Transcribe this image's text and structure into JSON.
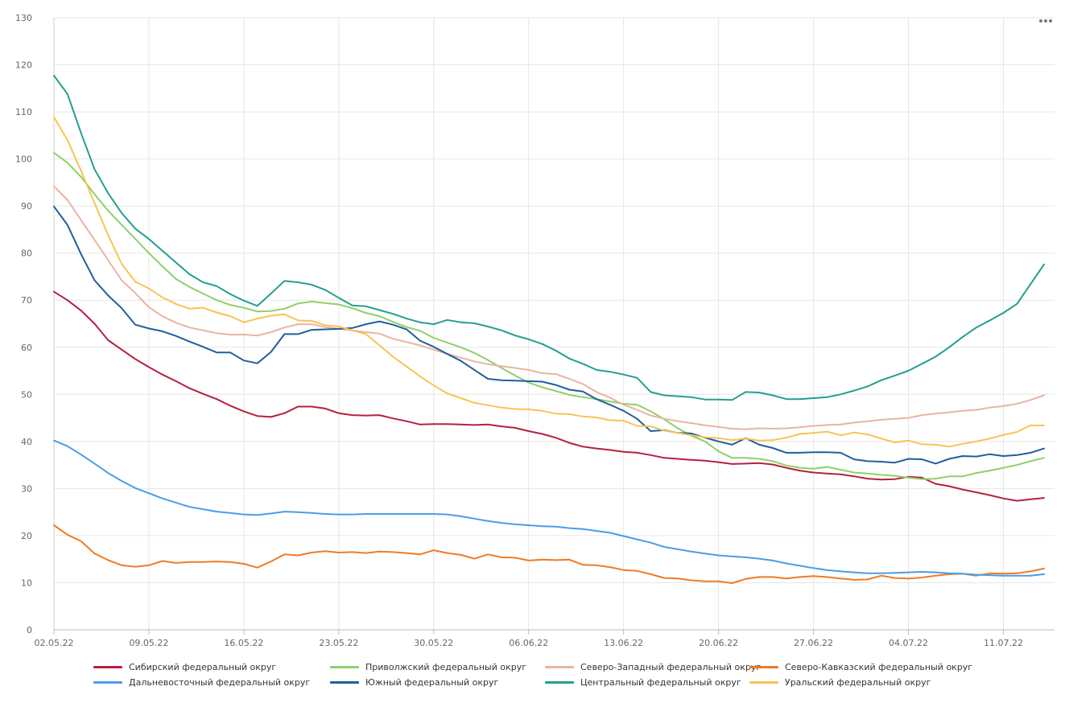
{
  "chart_data": {
    "type": "line",
    "title": "",
    "xlabel": "",
    "ylabel": "",
    "ylim": [
      0,
      130
    ],
    "yticks": [
      0,
      10,
      20,
      30,
      40,
      50,
      60,
      70,
      80,
      90,
      100,
      110,
      120,
      130
    ],
    "x_ticks": [
      "02.05.22",
      "09.05.22",
      "16.05.22",
      "23.05.22",
      "30.05.22",
      "06.06.22",
      "13.06.22",
      "20.06.22",
      "27.06.22",
      "04.07.22",
      "11.07.22"
    ],
    "x_start": "02.05.22",
    "x_end": "14.07.22",
    "grid": true,
    "legend_position": "bottom",
    "series": [
      {
        "name": "Сибирский федеральный округ",
        "color": "#b5203f",
        "values": [
          71.8,
          70.0,
          67.8,
          65.0,
          61.5,
          59.5,
          57.5,
          55.8,
          54.2,
          52.8,
          51.3,
          50.1,
          49.0,
          47.6,
          46.4,
          45.4,
          45.2,
          46.0,
          47.4,
          47.4,
          47.0,
          46.0,
          45.6,
          45.5,
          45.6,
          44.9,
          44.3,
          43.6,
          43.7,
          43.7,
          43.6,
          43.5,
          43.6,
          43.2,
          42.9,
          42.2,
          41.6,
          40.8,
          39.7,
          38.9,
          38.5,
          38.2,
          37.8,
          37.6,
          37.1,
          36.5,
          36.3,
          36.1,
          35.9,
          35.6,
          35.2,
          35.3,
          35.4,
          35.1,
          34.4,
          33.8,
          33.4,
          33.2,
          33.0,
          32.6,
          32.1,
          31.9,
          32.0,
          32.5,
          32.3,
          31.0,
          30.5,
          29.8,
          29.2,
          28.6,
          27.9,
          27.4,
          27.7,
          28.0
        ]
      },
      {
        "name": "Приволжский федеральный округ",
        "color": "#8fd068",
        "values": [
          101.3,
          99.2,
          96.2,
          92.5,
          89.0,
          86.0,
          83.0,
          80.0,
          77.2,
          74.5,
          72.8,
          71.4,
          70.0,
          69.0,
          68.4,
          67.6,
          67.7,
          68.2,
          69.3,
          69.7,
          69.4,
          69.1,
          68.3,
          67.3,
          66.6,
          65.4,
          64.3,
          63.5,
          62.0,
          61.0,
          60.0,
          58.8,
          57.3,
          55.6,
          54.0,
          52.5,
          51.5,
          50.7,
          49.9,
          49.4,
          49.0,
          48.5,
          48.0,
          47.8,
          46.4,
          44.7,
          42.8,
          41.2,
          40.0,
          37.9,
          36.5,
          36.5,
          36.3,
          35.8,
          34.9,
          34.4,
          34.2,
          34.6,
          34.0,
          33.4,
          33.2,
          32.9,
          32.7,
          32.3,
          32.0,
          32.1,
          32.6,
          32.6,
          33.3,
          33.8,
          34.4,
          35.0,
          35.8,
          36.5
        ]
      },
      {
        "name": "Северо-Западный федеральный округ",
        "color": "#e8b5a3",
        "values": [
          94.2,
          91.3,
          87.0,
          82.8,
          78.5,
          74.2,
          71.5,
          68.5,
          66.6,
          65.2,
          64.2,
          63.6,
          63.0,
          62.7,
          62.7,
          62.5,
          63.2,
          64.2,
          64.9,
          64.9,
          64.3,
          63.9,
          63.6,
          63.2,
          62.9,
          61.8,
          61.1,
          60.4,
          59.5,
          58.6,
          57.8,
          57.0,
          56.4,
          56.0,
          55.6,
          55.2,
          54.5,
          54.3,
          53.3,
          52.2,
          50.5,
          49.3,
          47.8,
          46.7,
          45.5,
          44.8,
          44.3,
          43.9,
          43.4,
          43.1,
          42.7,
          42.6,
          42.8,
          42.7,
          42.8,
          43.0,
          43.3,
          43.5,
          43.6,
          44.0,
          44.3,
          44.6,
          44.8,
          45.0,
          45.6,
          45.9,
          46.2,
          46.5,
          46.7,
          47.2,
          47.5,
          48.0,
          48.8,
          49.8
        ]
      },
      {
        "name": "Северо-Кавказский федеральный округ",
        "color": "#f07b23",
        "values": [
          22.2,
          20.2,
          18.8,
          16.2,
          14.8,
          13.7,
          13.4,
          13.7,
          14.6,
          14.2,
          14.4,
          14.4,
          14.5,
          14.4,
          14.0,
          13.2,
          14.5,
          16.0,
          15.8,
          16.4,
          16.7,
          16.4,
          16.5,
          16.3,
          16.6,
          16.5,
          16.3,
          16.0,
          16.9,
          16.3,
          15.9,
          15.1,
          16.0,
          15.4,
          15.3,
          14.7,
          14.9,
          14.8,
          14.9,
          13.8,
          13.7,
          13.3,
          12.7,
          12.5,
          11.8,
          11.0,
          10.9,
          10.5,
          10.3,
          10.3,
          9.9,
          10.8,
          11.2,
          11.2,
          10.9,
          11.2,
          11.4,
          11.2,
          10.9,
          10.6,
          10.7,
          11.5,
          11.0,
          10.9,
          11.1,
          11.5,
          11.8,
          11.9,
          11.5,
          12.0,
          11.9,
          12.0,
          12.4,
          13.0
        ]
      },
      {
        "name": "Дальневосточный федеральный округ",
        "color": "#4a9de8",
        "values": [
          40.2,
          39.0,
          37.2,
          35.3,
          33.3,
          31.6,
          30.1,
          29.0,
          27.9,
          27.0,
          26.1,
          25.6,
          25.1,
          24.8,
          24.5,
          24.4,
          24.7,
          25.1,
          25.0,
          24.8,
          24.6,
          24.5,
          24.5,
          24.6,
          24.6,
          24.6,
          24.6,
          24.6,
          24.6,
          24.5,
          24.1,
          23.6,
          23.1,
          22.7,
          22.4,
          22.2,
          22.0,
          21.9,
          21.6,
          21.4,
          21.0,
          20.6,
          19.9,
          19.2,
          18.5,
          17.6,
          17.1,
          16.6,
          16.2,
          15.8,
          15.6,
          15.4,
          15.1,
          14.7,
          14.1,
          13.6,
          13.1,
          12.7,
          12.4,
          12.2,
          12.0,
          12.0,
          12.1,
          12.2,
          12.3,
          12.2,
          12.0,
          11.9,
          11.7,
          11.6,
          11.5,
          11.5,
          11.5,
          11.8
        ]
      },
      {
        "name": "Южный федеральный округ",
        "color": "#1f5f9e",
        "values": [
          89.9,
          86.0,
          79.8,
          74.2,
          71.0,
          68.3,
          64.8,
          64.0,
          63.4,
          62.4,
          61.2,
          60.1,
          58.9,
          58.9,
          57.2,
          56.6,
          59.0,
          62.8,
          62.8,
          63.7,
          63.8,
          63.9,
          64.1,
          64.9,
          65.5,
          64.8,
          63.8,
          61.4,
          60.1,
          58.6,
          57.1,
          55.2,
          53.3,
          53.0,
          52.9,
          52.8,
          52.7,
          52.0,
          51.0,
          50.6,
          49.0,
          47.8,
          46.5,
          44.8,
          42.2,
          42.4,
          41.8,
          41.7,
          40.8,
          40.0,
          39.3,
          40.7,
          39.3,
          38.6,
          37.6,
          37.6,
          37.7,
          37.7,
          37.6,
          36.2,
          35.8,
          35.7,
          35.5,
          36.3,
          36.2,
          35.3,
          36.3,
          36.9,
          36.8,
          37.3,
          36.9,
          37.1,
          37.6,
          38.5
        ]
      },
      {
        "name": "Центральный федеральный округ",
        "color": "#22a08e",
        "values": [
          117.7,
          113.8,
          105.5,
          97.8,
          92.7,
          88.5,
          85.2,
          83.0,
          80.5,
          78.0,
          75.5,
          73.8,
          73.0,
          71.3,
          69.9,
          68.8,
          71.4,
          74.1,
          73.8,
          73.3,
          72.2,
          70.5,
          68.9,
          68.7,
          67.9,
          67.1,
          66.1,
          65.3,
          64.9,
          65.8,
          65.3,
          65.1,
          64.4,
          63.6,
          62.5,
          61.7,
          60.7,
          59.3,
          57.6,
          56.5,
          55.2,
          54.8,
          54.2,
          53.5,
          50.5,
          49.8,
          49.6,
          49.4,
          48.9,
          48.9,
          48.8,
          50.5,
          50.4,
          49.8,
          49.0,
          49.0,
          49.2,
          49.4,
          50.0,
          50.8,
          51.7,
          53.0,
          54.0,
          55.0,
          56.5,
          58.0,
          60.0,
          62.2,
          64.2,
          65.7,
          67.3,
          69.2,
          73.4,
          77.6
        ]
      },
      {
        "name": "Уральский федеральный округ",
        "color": "#f8c452",
        "values": [
          108.9,
          104.0,
          97.5,
          90.6,
          83.8,
          77.7,
          73.9,
          72.5,
          70.6,
          69.2,
          68.2,
          68.4,
          67.4,
          66.6,
          65.3,
          66.1,
          66.7,
          67.0,
          65.7,
          65.6,
          64.7,
          64.4,
          63.6,
          62.8,
          60.4,
          58.0,
          55.9,
          53.8,
          51.9,
          50.2,
          49.2,
          48.2,
          47.7,
          47.2,
          46.9,
          46.8,
          46.5,
          45.9,
          45.8,
          45.3,
          45.1,
          44.5,
          44.4,
          43.3,
          43.2,
          42.3,
          41.8,
          41.3,
          40.9,
          40.7,
          40.3,
          40.6,
          40.2,
          40.3,
          40.8,
          41.6,
          41.8,
          42.1,
          41.3,
          41.9,
          41.5,
          40.6,
          39.8,
          40.2,
          39.4,
          39.3,
          38.9,
          39.5,
          40.0,
          40.6,
          41.4,
          42.0,
          43.4,
          43.4
        ]
      }
    ]
  },
  "toolbar": {
    "menu_icon": "more-horizontal-icon",
    "menu_label": "•••"
  }
}
